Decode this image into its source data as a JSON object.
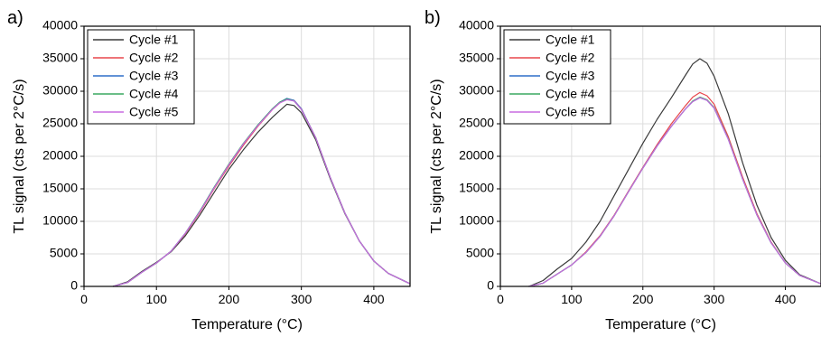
{
  "chart_data": [
    {
      "type": "line",
      "panel_label": "a)",
      "xlabel": "Temperature (°C)",
      "ylabel": "TL signal (cts per 2°C/s)",
      "xlim": [
        0,
        450
      ],
      "ylim": [
        0,
        40000
      ],
      "xticks": [
        0,
        100,
        200,
        300,
        400
      ],
      "yticks": [
        0,
        5000,
        10000,
        15000,
        20000,
        25000,
        30000,
        35000,
        40000
      ],
      "grid": true,
      "legend_position": "top-left",
      "series": [
        {
          "name": "Cycle #1",
          "color": "#3a3a3a",
          "x": [
            40,
            60,
            80,
            100,
            120,
            140,
            160,
            180,
            200,
            220,
            240,
            260,
            270,
            280,
            290,
            300,
            320,
            340,
            360,
            380,
            400,
            420,
            450
          ],
          "y": [
            0,
            700,
            2300,
            3700,
            5300,
            7800,
            11000,
            14500,
            18000,
            21000,
            23700,
            26000,
            27000,
            28000,
            27800,
            26700,
            22500,
            16500,
            11200,
            7000,
            3900,
            2000,
            400
          ]
        },
        {
          "name": "Cycle #2",
          "color": "#e8474c",
          "x": [
            40,
            60,
            80,
            100,
            120,
            140,
            160,
            180,
            200,
            220,
            240,
            260,
            270,
            280,
            290,
            300,
            320,
            340,
            360,
            380,
            400,
            420,
            450
          ],
          "y": [
            0,
            600,
            2200,
            3600,
            5400,
            8100,
            11400,
            15100,
            18500,
            21700,
            24600,
            27200,
            28200,
            28800,
            28600,
            27300,
            22800,
            16700,
            11300,
            7000,
            3900,
            2000,
            400
          ]
        },
        {
          "name": "Cycle #3",
          "color": "#2f6fc9",
          "x": [
            40,
            60,
            80,
            100,
            120,
            140,
            160,
            180,
            200,
            220,
            240,
            260,
            270,
            280,
            290,
            300,
            320,
            340,
            360,
            380,
            400,
            420,
            450
          ],
          "y": [
            0,
            600,
            2200,
            3600,
            5400,
            8200,
            11600,
            15300,
            18700,
            21900,
            24800,
            27300,
            28300,
            28900,
            28600,
            27300,
            22800,
            16700,
            11300,
            7000,
            3900,
            2000,
            400
          ]
        },
        {
          "name": "Cycle #4",
          "color": "#3aa860",
          "x": [
            40,
            60,
            80,
            100,
            120,
            140,
            160,
            180,
            200,
            220,
            240,
            260,
            270,
            280,
            290,
            300,
            320,
            340,
            360,
            380,
            400,
            420,
            450
          ],
          "y": [
            0,
            600,
            2200,
            3600,
            5400,
            8200,
            11600,
            15300,
            18800,
            22000,
            24800,
            27300,
            28300,
            28800,
            28500,
            27200,
            22800,
            16700,
            11300,
            7000,
            3900,
            2000,
            400
          ]
        },
        {
          "name": "Cycle #5",
          "color": "#c86be0",
          "x": [
            40,
            60,
            80,
            100,
            120,
            140,
            160,
            180,
            200,
            220,
            240,
            260,
            270,
            280,
            290,
            300,
            320,
            340,
            360,
            380,
            400,
            420,
            450
          ],
          "y": [
            0,
            600,
            2200,
            3600,
            5400,
            8200,
            11500,
            15200,
            18700,
            21900,
            24700,
            27200,
            28200,
            28700,
            28500,
            27200,
            22800,
            16700,
            11300,
            7000,
            3900,
            2000,
            400
          ]
        }
      ]
    },
    {
      "type": "line",
      "panel_label": "b)",
      "xlabel": "Temperature (°C)",
      "ylabel": "TL signal (cts per 2°C/s)",
      "xlim": [
        0,
        450
      ],
      "ylim": [
        0,
        40000
      ],
      "xticks": [
        0,
        100,
        200,
        300,
        400
      ],
      "yticks": [
        0,
        5000,
        10000,
        15000,
        20000,
        25000,
        30000,
        35000,
        40000
      ],
      "grid": true,
      "legend_position": "top-left",
      "series": [
        {
          "name": "Cycle #1",
          "color": "#3a3a3a",
          "x": [
            40,
            60,
            80,
            100,
            120,
            140,
            160,
            180,
            200,
            220,
            240,
            260,
            270,
            280,
            290,
            300,
            320,
            340,
            360,
            380,
            400,
            420,
            450
          ],
          "y": [
            0,
            900,
            2700,
            4300,
            6800,
            10000,
            14000,
            18000,
            22000,
            25700,
            29000,
            32500,
            34200,
            35000,
            34300,
            32300,
            26500,
            19000,
            12500,
            7500,
            4000,
            1800,
            400
          ]
        },
        {
          "name": "Cycle #2",
          "color": "#e8474c",
          "x": [
            40,
            60,
            80,
            100,
            120,
            140,
            160,
            180,
            200,
            220,
            240,
            260,
            270,
            280,
            290,
            300,
            320,
            340,
            360,
            380,
            400,
            420,
            450
          ],
          "y": [
            0,
            500,
            1900,
            3300,
            5300,
            7800,
            11000,
            14700,
            18300,
            21800,
            25000,
            27800,
            29100,
            29800,
            29300,
            28000,
            23000,
            16800,
            11200,
            6800,
            3600,
            1700,
            400
          ]
        },
        {
          "name": "Cycle #3",
          "color": "#2f6fc9",
          "x": [
            40,
            60,
            80,
            100,
            120,
            140,
            160,
            180,
            200,
            220,
            240,
            260,
            270,
            280,
            290,
            300,
            320,
            340,
            360,
            380,
            400,
            420,
            450
          ],
          "y": [
            0,
            500,
            1900,
            3300,
            5200,
            7700,
            10900,
            14600,
            18200,
            21600,
            24600,
            27300,
            28400,
            29000,
            28600,
            27400,
            22600,
            16500,
            11000,
            6700,
            3600,
            1700,
            400
          ]
        },
        {
          "name": "Cycle #4",
          "color": "#3aa860",
          "x": [
            40,
            60,
            80,
            100,
            120,
            140,
            160,
            180,
            200,
            220,
            240,
            260,
            270,
            280,
            290,
            300,
            320,
            340,
            360,
            380,
            400,
            420,
            450
          ],
          "y": [
            0,
            500,
            1900,
            3300,
            5200,
            7700,
            10900,
            14600,
            18200,
            21600,
            24600,
            27300,
            28500,
            29100,
            28700,
            27500,
            22700,
            16500,
            11000,
            6700,
            3600,
            1700,
            400
          ]
        },
        {
          "name": "Cycle #5",
          "color": "#c86be0",
          "x": [
            40,
            60,
            80,
            100,
            120,
            140,
            160,
            180,
            200,
            220,
            240,
            260,
            270,
            280,
            290,
            300,
            320,
            340,
            360,
            380,
            400,
            420,
            450
          ],
          "y": [
            0,
            500,
            1900,
            3300,
            5200,
            7700,
            10900,
            14600,
            18200,
            21600,
            24600,
            27300,
            28400,
            29000,
            28600,
            27400,
            22600,
            16500,
            11000,
            6700,
            3600,
            1700,
            400
          ]
        }
      ]
    }
  ]
}
